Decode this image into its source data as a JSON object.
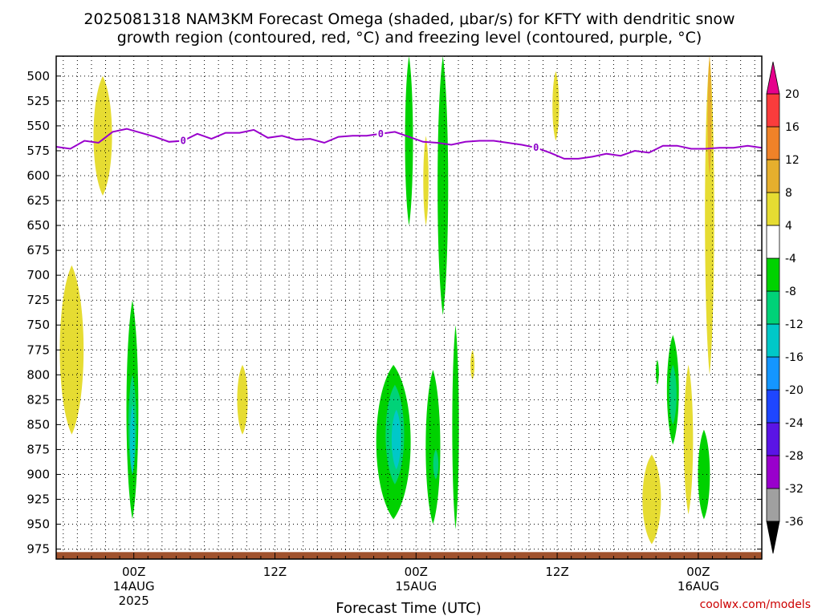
{
  "chart_data": {
    "type": "heatmap",
    "title_lines": [
      "2025081318 NAM3KM Forecast Omega (shaded, μbar/s) for KFTY with dendritic snow",
      "growth region (contoured, red, °C) and freezing level (contoured, purple, °C)"
    ],
    "xlabel": "Forecast Time (UTC)",
    "ylabel": "",
    "credit": "coolwx.com/models",
    "x_unit": "forecast hour from 2025-08-13 18Z",
    "xlim": [
      -0.5,
      49.5
    ],
    "ylim": [
      985,
      480
    ],
    "y_ticks": [
      500,
      525,
      550,
      575,
      600,
      625,
      650,
      675,
      700,
      725,
      750,
      775,
      800,
      825,
      850,
      875,
      900,
      925,
      950,
      975
    ],
    "x_ticks": [
      {
        "x": 5,
        "label": "00Z",
        "sub": "14AUG",
        "year": "2025"
      },
      {
        "x": 15,
        "label": "12Z",
        "sub": "",
        "year": ""
      },
      {
        "x": 25,
        "label": "00Z",
        "sub": "15AUG",
        "year": ""
      },
      {
        "x": 35,
        "label": "12Z",
        "sub": "",
        "year": ""
      },
      {
        "x": 45,
        "label": "00Z",
        "sub": "16AUG",
        "year": ""
      }
    ],
    "grid": true,
    "colorbar": {
      "levels": [
        -36,
        -32,
        -28,
        -24,
        -20,
        -16,
        -12,
        -8,
        -4,
        4,
        8,
        12,
        16,
        20
      ],
      "colors": [
        "#a0a0a0",
        "#9900cc",
        "#5a14e6",
        "#1e46ff",
        "#1496ff",
        "#00c8c8",
        "#00d278",
        "#00d200",
        "#ffffff",
        "#e6dc32",
        "#e6af2d",
        "#f08228",
        "#fa3c3c",
        "#e6008c"
      ],
      "below_color": "#000000",
      "above_color": "#e6008c"
    },
    "freezing_level": {
      "label": "0",
      "color": "#9900cc",
      "x": [
        -0.5,
        0.5,
        1.5,
        2.5,
        3.5,
        4.5,
        5.5,
        6.5,
        7.5,
        8.5,
        9.5,
        10.5,
        11.5,
        12.5,
        13.5,
        14.5,
        15.5,
        16.5,
        17.5,
        18.5,
        19.5,
        20.5,
        21.5,
        22.5,
        23.5,
        24.5,
        25.5,
        26.5,
        27.5,
        28.5,
        29.5,
        30.5,
        31.5,
        32.5,
        33.5,
        34.5,
        35.5,
        36.5,
        37.5,
        38.5,
        39.5,
        40.5,
        41.5,
        42.5,
        43.5,
        44.5,
        45.5,
        46.5,
        47.5,
        48.5,
        49.5
      ],
      "p": [
        571,
        573,
        565,
        567,
        556,
        553,
        557,
        561,
        566,
        565,
        558,
        563,
        557,
        557,
        554,
        562,
        560,
        564,
        563,
        567,
        561,
        560,
        560,
        558,
        556,
        561,
        566,
        567,
        569,
        566,
        565,
        565,
        567,
        569,
        572,
        577,
        583,
        583,
        581,
        578,
        580,
        575,
        577,
        570,
        570,
        573,
        573,
        572,
        572,
        570,
        572
      ]
    },
    "shaded_regions": [
      {
        "band": [
          4,
          8
        ],
        "x_center": 2.8,
        "x_halfwidth": 0.7,
        "p_top": 500,
        "p_bottom": 620
      },
      {
        "band": [
          4,
          8
        ],
        "x_center": 0.6,
        "x_halfwidth": 0.9,
        "p_top": 690,
        "p_bottom": 860
      },
      {
        "band": [
          4,
          8
        ],
        "x_center": 12.7,
        "x_halfwidth": 0.4,
        "p_top": 790,
        "p_bottom": 860
      },
      {
        "band": [
          4,
          8
        ],
        "x_center": 25.7,
        "x_halfwidth": 0.2,
        "p_top": 560,
        "p_bottom": 650
      },
      {
        "band": [
          4,
          8
        ],
        "x_center": 34.9,
        "x_halfwidth": 0.25,
        "p_top": 495,
        "p_bottom": 565
      },
      {
        "band": [
          4,
          8
        ],
        "x_center": 29.0,
        "x_halfwidth": 0.15,
        "p_top": 775,
        "p_bottom": 805
      },
      {
        "band": [
          4,
          8
        ],
        "x_center": 41.7,
        "x_halfwidth": 0.7,
        "p_top": 880,
        "p_bottom": 970
      },
      {
        "band": [
          4,
          8
        ],
        "x_center": 44.3,
        "x_halfwidth": 0.35,
        "p_top": 790,
        "p_bottom": 940
      },
      {
        "band": [
          4,
          8
        ],
        "x_center": 45.8,
        "x_halfwidth": 0.35,
        "p_top": 480,
        "p_bottom": 800
      },
      {
        "band": [
          8,
          12
        ],
        "x_center": 45.8,
        "x_halfwidth": 0.15,
        "p_top": 480,
        "p_bottom": 600
      },
      {
        "band": [
          -8,
          -4
        ],
        "x_center": 4.9,
        "x_halfwidth": 0.45,
        "p_top": 725,
        "p_bottom": 945
      },
      {
        "band": [
          -12,
          -8
        ],
        "x_center": 4.9,
        "x_halfwidth": 0.3,
        "p_top": 800,
        "p_bottom": 900
      },
      {
        "band": [
          -16,
          -12
        ],
        "x_center": 4.9,
        "x_halfwidth": 0.18,
        "p_top": 830,
        "p_bottom": 900
      },
      {
        "band": [
          -8,
          -4
        ],
        "x_center": 24.5,
        "x_halfwidth": 0.3,
        "p_top": 480,
        "p_bottom": 650
      },
      {
        "band": [
          -8,
          -4
        ],
        "x_center": 23.4,
        "x_halfwidth": 1.3,
        "p_top": 790,
        "p_bottom": 945
      },
      {
        "band": [
          -12,
          -8
        ],
        "x_center": 23.5,
        "x_halfwidth": 0.7,
        "p_top": 810,
        "p_bottom": 910
      },
      {
        "band": [
          -16,
          -12
        ],
        "x_center": 23.6,
        "x_halfwidth": 0.35,
        "p_top": 835,
        "p_bottom": 895
      },
      {
        "band": [
          -8,
          -4
        ],
        "x_center": 26.9,
        "x_halfwidth": 0.4,
        "p_top": 480,
        "p_bottom": 740
      },
      {
        "band": [
          -8,
          -4
        ],
        "x_center": 27.8,
        "x_halfwidth": 0.25,
        "p_top": 750,
        "p_bottom": 955
      },
      {
        "band": [
          -8,
          -4
        ],
        "x_center": 26.2,
        "x_halfwidth": 0.55,
        "p_top": 795,
        "p_bottom": 950
      },
      {
        "band": [
          -12,
          -8
        ],
        "x_center": 26.4,
        "x_halfwidth": 0.2,
        "p_top": 875,
        "p_bottom": 905
      },
      {
        "band": [
          -8,
          -4
        ],
        "x_center": 43.2,
        "x_halfwidth": 0.45,
        "p_top": 760,
        "p_bottom": 870
      },
      {
        "band": [
          -12,
          -8
        ],
        "x_center": 43.2,
        "x_halfwidth": 0.28,
        "p_top": 790,
        "p_bottom": 850
      },
      {
        "band": [
          -8,
          -4
        ],
        "x_center": 45.4,
        "x_halfwidth": 0.45,
        "p_top": 855,
        "p_bottom": 945
      },
      {
        "band": [
          -8,
          -4
        ],
        "x_center": 42.1,
        "x_halfwidth": 0.1,
        "p_top": 785,
        "p_bottom": 810
      }
    ],
    "surface": {
      "color": "#a0522d",
      "top_p": 978
    }
  }
}
